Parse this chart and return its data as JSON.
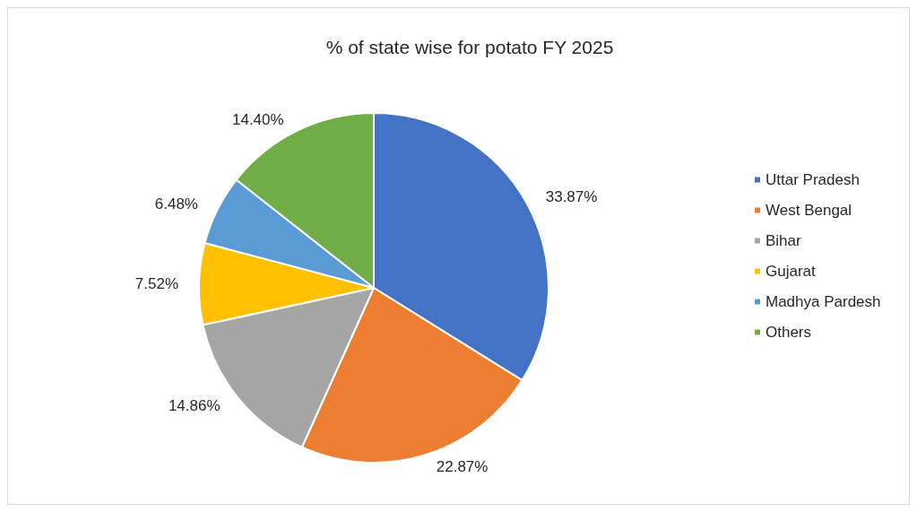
{
  "chart_data": {
    "type": "pie",
    "title": "% of state wise for potato FY 2025",
    "categories": [
      "Uttar Pradesh",
      "West Bengal",
      "Bihar",
      "Gujarat",
      "Madhya Pardesh",
      "Others"
    ],
    "values": [
      33.87,
      22.87,
      14.86,
      7.52,
      6.48,
      14.4
    ],
    "value_labels": [
      "33.87%",
      "22.87%",
      "14.86%",
      "7.52%",
      "6.48%",
      "14.40%"
    ],
    "colors": [
      "#4472c4",
      "#ed7d31",
      "#a5a5a5",
      "#ffc000",
      "#5b9bd5",
      "#70ad47"
    ],
    "legend": "right"
  }
}
